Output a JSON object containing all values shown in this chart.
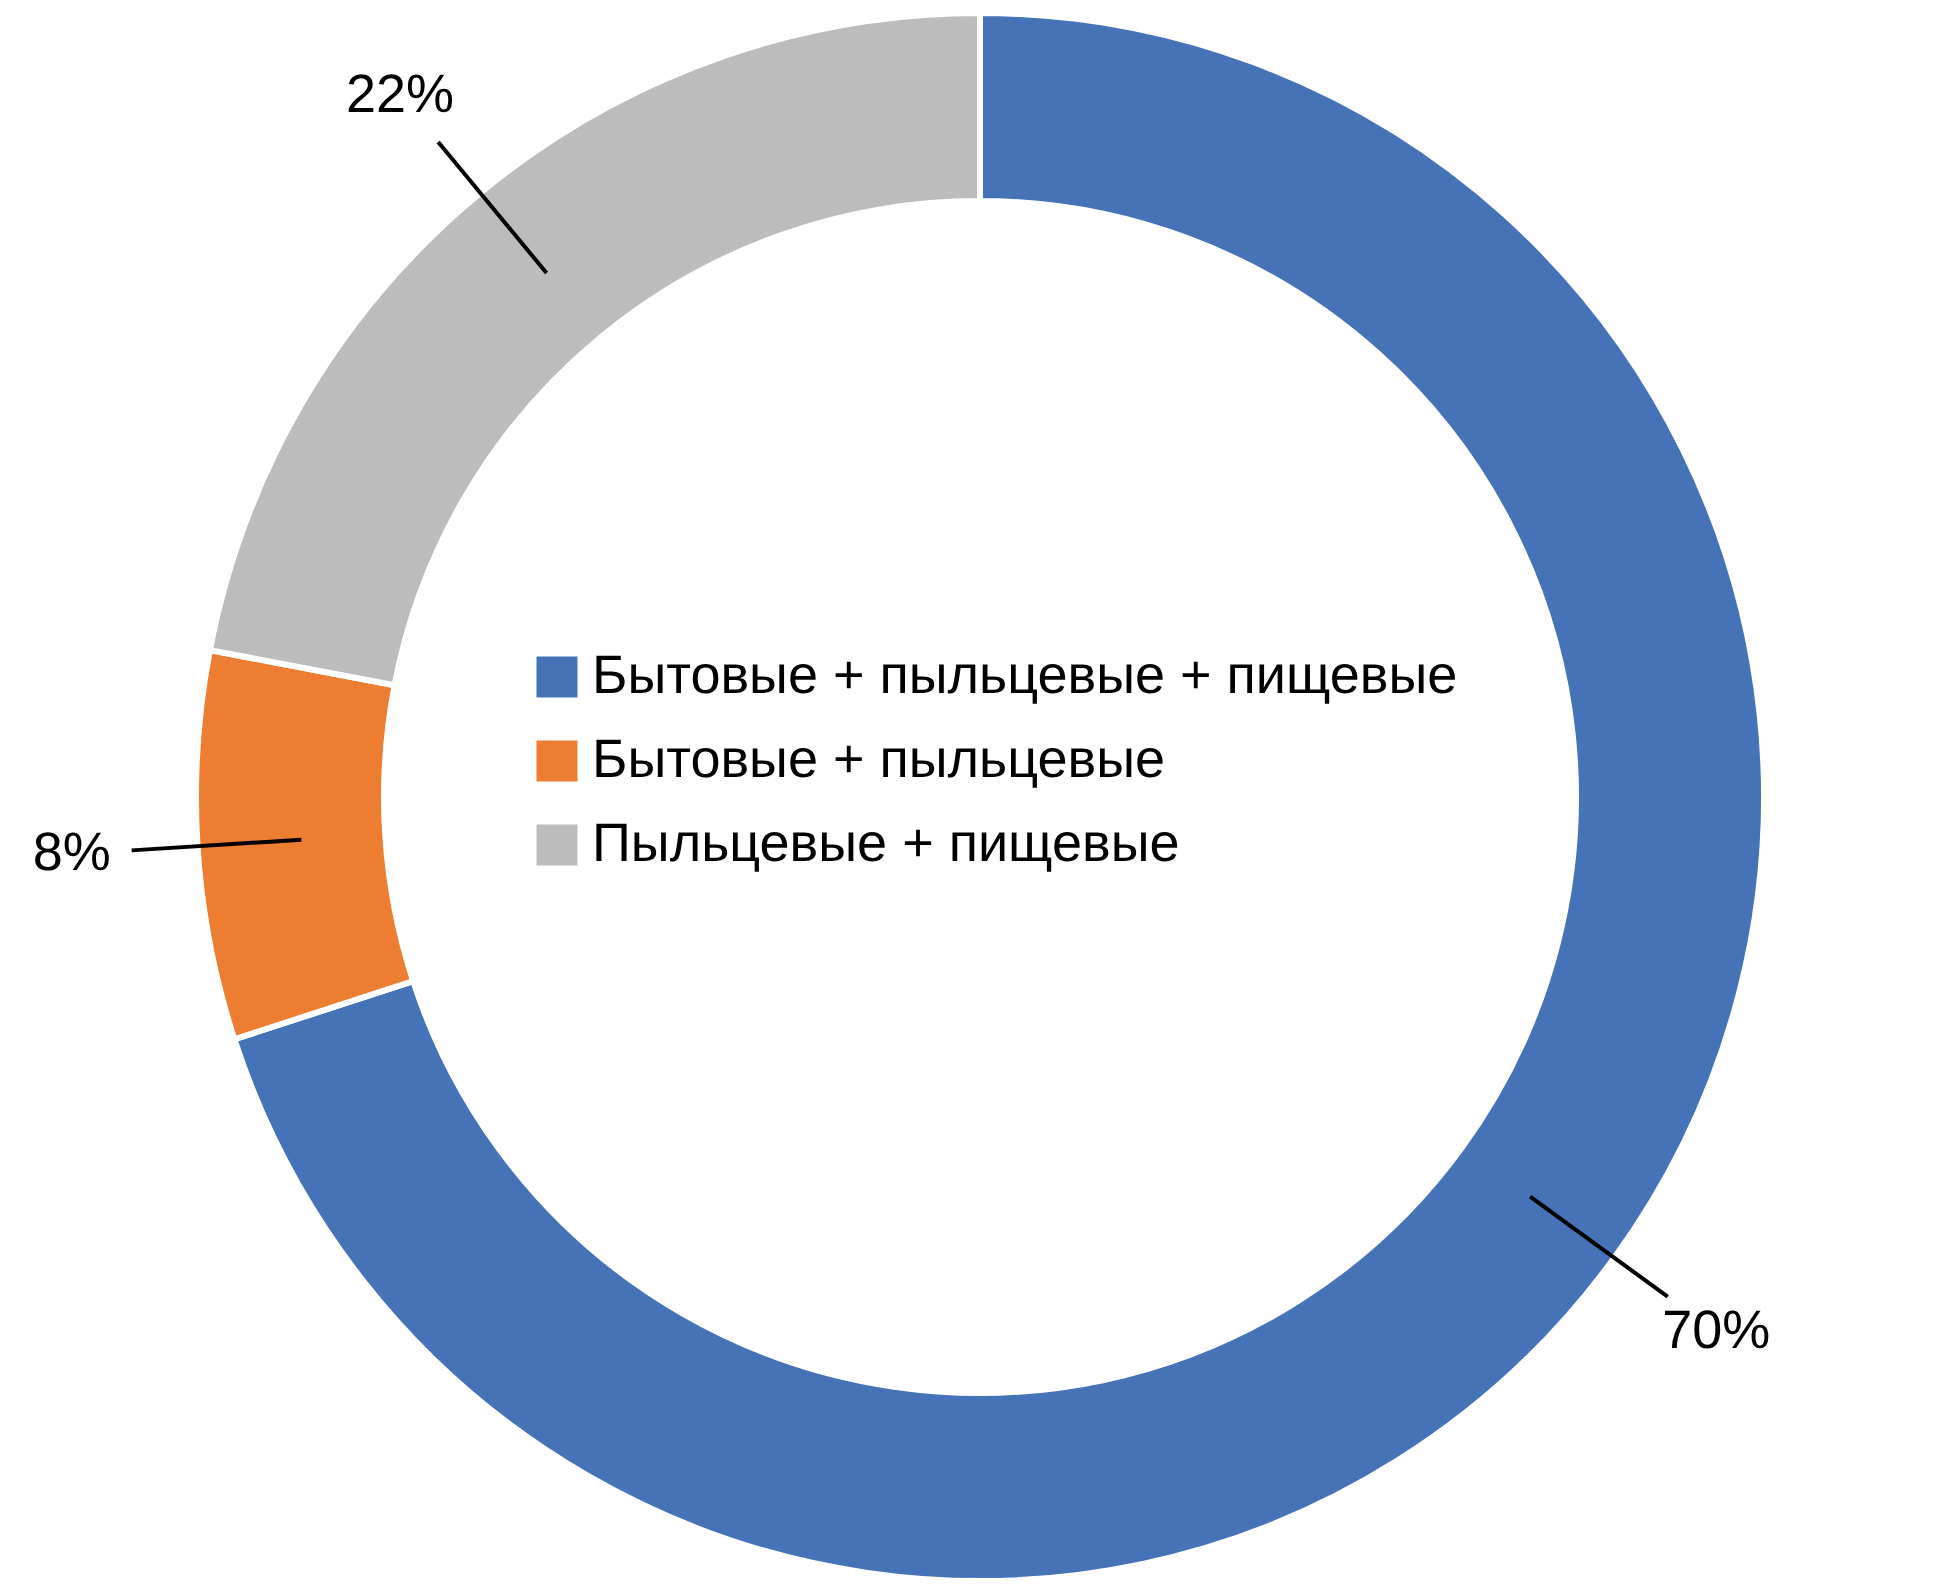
{
  "chart_data": {
    "type": "donut",
    "categories": [
      "Бытовые + пыльцевые + пищевые",
      "Бытовые + пыльцевые",
      "Пыльцевые + пищевые"
    ],
    "values": [
      70,
      8,
      22
    ],
    "colors": [
      "#4672b8",
      "#ed7d31",
      "#bcbcbc"
    ],
    "value_labels": [
      "70%",
      "8%",
      "22%"
    ],
    "legend": "center"
  }
}
